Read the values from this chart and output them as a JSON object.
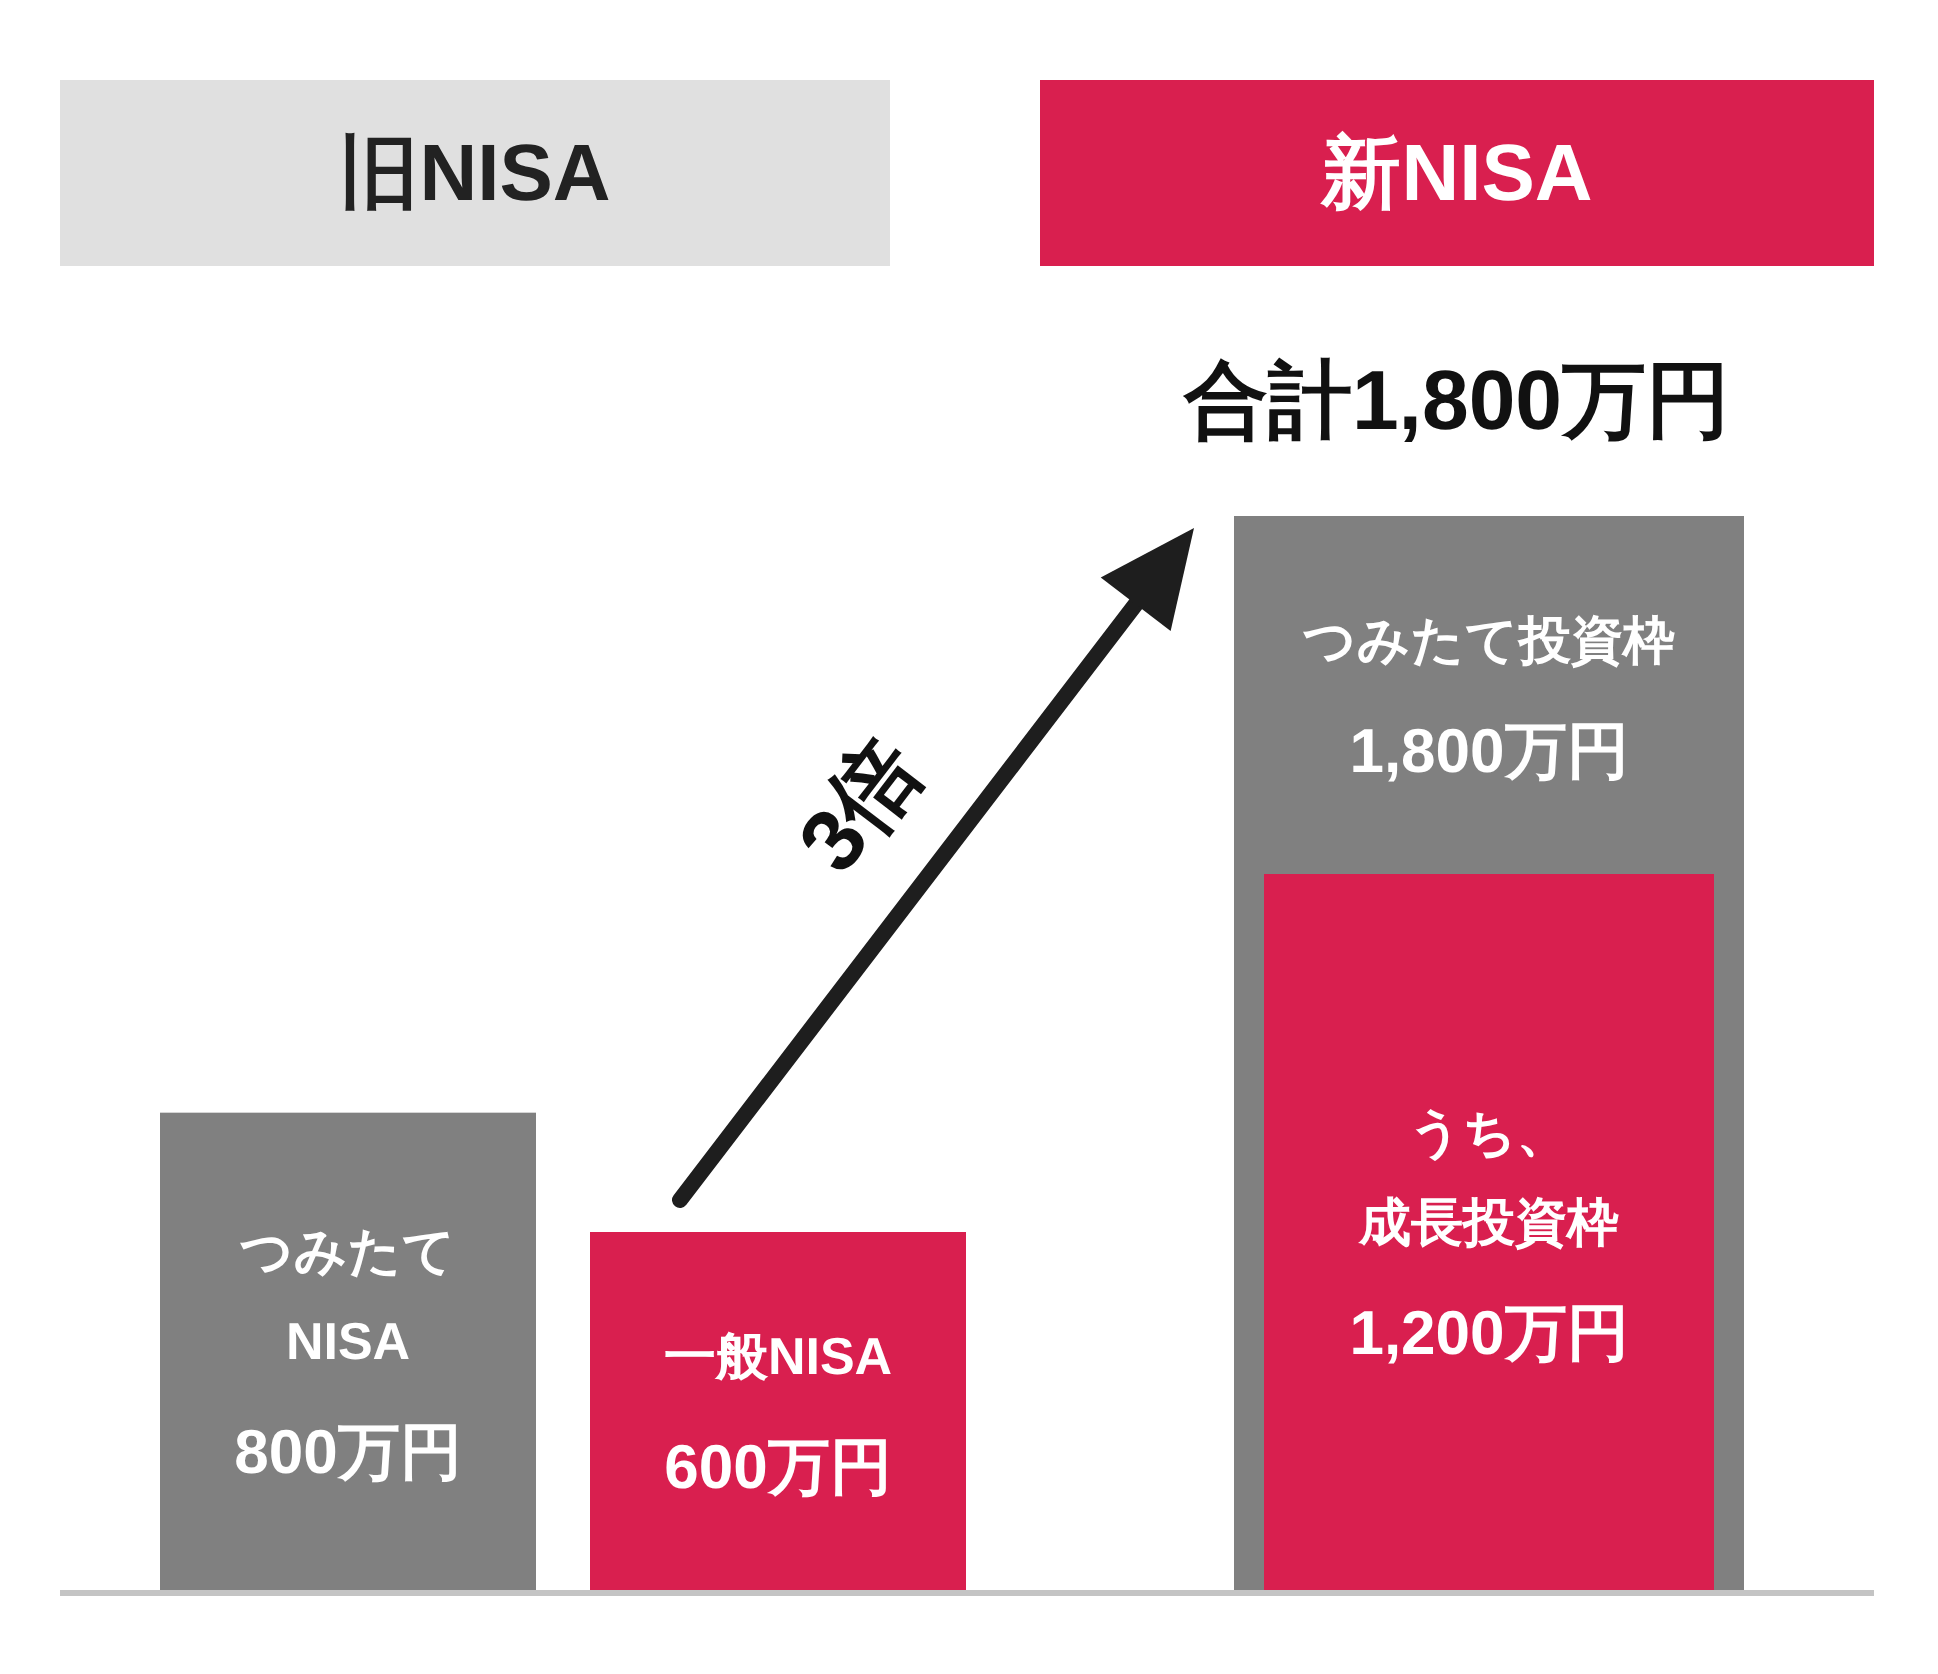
{
  "chart_data": {
    "type": "bar",
    "categories": [
      "旧NISA",
      "新NISA"
    ],
    "series": [
      {
        "color": "#808080",
        "values": [
          800,
          1800
        ],
        "value_labels": [
          "つみたて\nNISA\n800万円",
          "つみたて投資枠\n1,800万円"
        ]
      },
      {
        "color": "#d91f4f",
        "values": [
          600,
          1200
        ],
        "value_labels": [
          "一般NISA\n600万円",
          "うち、成長投資枠\n1,200万円"
        ]
      }
    ],
    "annotations": [
      {
        "text": "合計1,800万円",
        "x": "新NISA",
        "y": 1800
      },
      "3倍"
    ]
  }
}
